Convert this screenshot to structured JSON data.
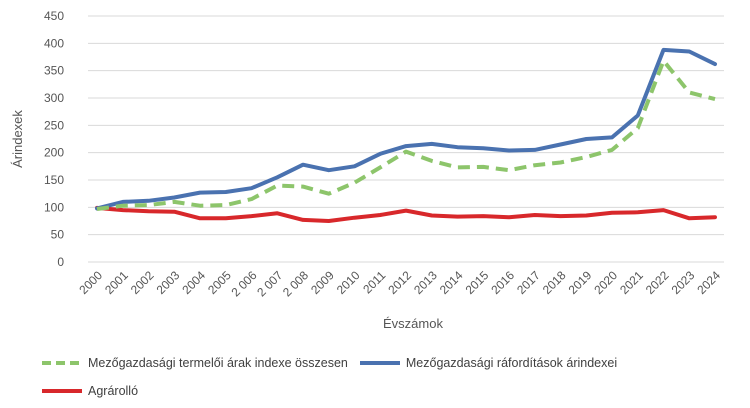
{
  "chart_data": {
    "type": "line",
    "xlabel": "Évszámok",
    "ylabel": "Árindexek",
    "ylim": [
      0,
      450
    ],
    "yticks": [
      0,
      50,
      100,
      150,
      200,
      250,
      300,
      350,
      400,
      450
    ],
    "categories": [
      "2000",
      "2001",
      "2002",
      "2003",
      "2004",
      "2005",
      "2 006",
      "2 007",
      "2 008",
      "2009",
      "2010",
      "2011",
      "2012",
      "2013",
      "2014",
      "2015",
      "2016",
      "2017",
      "2018",
      "2019",
      "2020",
      "2021",
      "2022",
      "2023",
      "2024"
    ],
    "grid": "horizontal",
    "legend_position": "bottom",
    "series": [
      {
        "name": "Mezőgazdasági termelői árak indexe összesen",
        "color": "#8dc56b",
        "style": "dashed",
        "values": [
          97,
          103,
          104,
          110,
          103,
          104,
          115,
          140,
          138,
          125,
          145,
          173,
          202,
          185,
          173,
          174,
          168,
          177,
          182,
          192,
          205,
          245,
          368,
          310,
          298
        ]
      },
      {
        "name": "Mezőgazdasági ráfordítások árindexei",
        "color": "#4a72b0",
        "style": "solid",
        "values": [
          98,
          110,
          112,
          118,
          127,
          128,
          135,
          155,
          178,
          168,
          175,
          198,
          212,
          216,
          210,
          208,
          204,
          205,
          215,
          225,
          228,
          268,
          388,
          385,
          362
        ]
      },
      {
        "name": "Agrárolló",
        "color": "#d8282b",
        "style": "solid",
        "values": [
          99,
          95,
          93,
          92,
          80,
          80,
          84,
          89,
          77,
          75,
          81,
          86,
          94,
          85,
          83,
          84,
          82,
          86,
          84,
          85,
          90,
          91,
          95,
          80,
          82
        ]
      }
    ]
  }
}
